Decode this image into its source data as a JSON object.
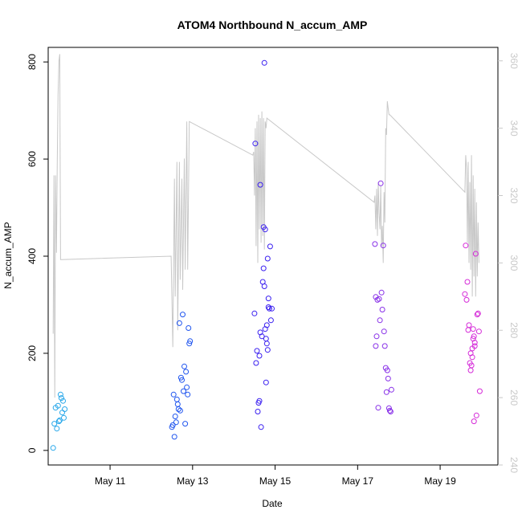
{
  "chart_data": {
    "type": "scatter",
    "title": "ATOM4 Northbound N_accum_AMP",
    "xlabel": "Date",
    "ylabel": "N_accum_AMP",
    "x_ticks": [
      "May 11",
      "May 13",
      "May 15",
      "May 17",
      "May 19"
    ],
    "x_tick_days": [
      11,
      13,
      15,
      17,
      19
    ],
    "xlim": [
      9.5,
      20.4
    ],
    "ylim": [
      -30,
      830
    ],
    "y_ticks": [
      0,
      200,
      400,
      600,
      800
    ],
    "y2lim": [
      240,
      364
    ],
    "y2_ticks": [
      240,
      260,
      280,
      300,
      320,
      340,
      360
    ],
    "grid": false,
    "colors": {
      "line": "#c8c8c8",
      "right_axis": "#c8c8c8",
      "points": [
        "#29a8ea",
        "#2156ef",
        "#3a1ff0",
        "#8830e8",
        "#d52ad8"
      ]
    },
    "series": [
      {
        "values": [
          [
            9.62,
            5
          ],
          [
            9.65,
            55
          ],
          [
            9.68,
            88
          ],
          [
            9.71,
            45
          ],
          [
            9.74,
            92
          ],
          [
            9.76,
            60
          ],
          [
            9.78,
            62
          ],
          [
            9.8,
            115
          ],
          [
            9.82,
            108
          ],
          [
            9.84,
            78
          ],
          [
            9.86,
            102
          ],
          [
            9.88,
            67
          ],
          [
            9.9,
            85
          ],
          [
            12.5,
            48
          ],
          [
            12.52,
            52
          ],
          [
            12.54,
            115
          ],
          [
            12.56,
            28
          ],
          [
            12.58,
            70
          ],
          [
            12.6,
            58
          ],
          [
            12.62,
            105
          ],
          [
            12.64,
            95
          ],
          [
            12.66,
            85
          ],
          [
            12.68,
            262
          ],
          [
            12.7,
            82
          ],
          [
            12.72,
            150
          ],
          [
            12.74,
            145
          ],
          [
            12.76,
            280
          ],
          [
            12.78,
            122
          ],
          [
            12.8,
            173
          ],
          [
            12.82,
            55
          ],
          [
            12.84,
            162
          ],
          [
            12.86,
            130
          ],
          [
            12.88,
            115
          ],
          [
            12.9,
            252
          ],
          [
            12.92,
            220
          ],
          [
            12.94,
            225
          ],
          [
            14.5,
            282
          ],
          [
            14.52,
            632
          ],
          [
            14.54,
            180
          ],
          [
            14.56,
            205
          ],
          [
            14.58,
            80
          ],
          [
            14.6,
            98
          ],
          [
            14.62,
            102
          ],
          [
            14.64,
            547
          ],
          [
            14.66,
            48
          ],
          [
            14.68,
            235
          ],
          [
            14.7,
            347
          ],
          [
            14.72,
            460
          ],
          [
            14.74,
            798
          ],
          [
            14.76,
            455
          ],
          [
            14.78,
            140
          ],
          [
            14.8,
            258
          ],
          [
            14.82,
            395
          ],
          [
            14.84,
            313
          ],
          [
            14.86,
            292
          ],
          [
            14.88,
            420
          ],
          [
            14.9,
            268
          ],
          [
            14.92,
            292
          ],
          [
            14.72,
            375
          ],
          [
            14.74,
            338
          ],
          [
            14.76,
            250
          ],
          [
            14.78,
            230
          ],
          [
            14.8,
            220
          ],
          [
            14.82,
            207
          ],
          [
            14.62,
            195
          ],
          [
            14.64,
            243
          ],
          [
            14.84,
            295
          ],
          [
            17.42,
            425
          ],
          [
            17.44,
            316
          ],
          [
            17.46,
            235
          ],
          [
            17.48,
            310
          ],
          [
            17.5,
            88
          ],
          [
            17.52,
            312
          ],
          [
            17.54,
            268
          ],
          [
            17.56,
            550
          ],
          [
            17.58,
            325
          ],
          [
            17.6,
            290
          ],
          [
            17.62,
            422
          ],
          [
            17.64,
            245
          ],
          [
            17.66,
            215
          ],
          [
            17.68,
            170
          ],
          [
            17.7,
            120
          ],
          [
            17.72,
            165
          ],
          [
            17.74,
            148
          ],
          [
            17.76,
            87
          ],
          [
            17.78,
            82
          ],
          [
            17.8,
            80
          ],
          [
            17.82,
            125
          ],
          [
            17.44,
            215
          ],
          [
            19.6,
            322
          ],
          [
            19.62,
            422
          ],
          [
            19.64,
            310
          ],
          [
            19.66,
            347
          ],
          [
            19.68,
            248
          ],
          [
            19.7,
            258
          ],
          [
            19.72,
            180
          ],
          [
            19.74,
            200
          ],
          [
            19.76,
            175
          ],
          [
            19.78,
            192
          ],
          [
            19.8,
            230
          ],
          [
            19.82,
            60
          ],
          [
            19.84,
            215
          ],
          [
            19.86,
            405
          ],
          [
            19.88,
            72
          ],
          [
            19.9,
            280
          ],
          [
            19.92,
            282
          ],
          [
            19.94,
            245
          ],
          [
            19.96,
            122
          ],
          [
            19.74,
            165
          ],
          [
            19.78,
            210
          ],
          [
            19.8,
            250
          ],
          [
            19.82,
            235
          ],
          [
            19.84,
            222
          ]
        ]
      },
      {
        "axis": "right",
        "values": [
          [
            9.62,
            279
          ],
          [
            9.64,
            326
          ],
          [
            9.66,
            260
          ],
          [
            9.68,
            326
          ],
          [
            9.7,
            303
          ],
          [
            9.72,
            330
          ],
          [
            9.74,
            350
          ],
          [
            9.76,
            360
          ],
          [
            9.78,
            362
          ],
          [
            9.8,
            301
          ],
          [
            9.82,
            301
          ],
          [
            9.84,
            301
          ],
          [
            12.48,
            302
          ],
          [
            12.52,
            275
          ],
          [
            12.56,
            325
          ],
          [
            12.58,
            290
          ],
          [
            12.62,
            330
          ],
          [
            12.64,
            280
          ],
          [
            12.68,
            330
          ],
          [
            12.7,
            295
          ],
          [
            12.74,
            325
          ],
          [
            12.76,
            292
          ],
          [
            12.8,
            331
          ],
          [
            12.82,
            298
          ],
          [
            12.86,
            342
          ],
          [
            12.88,
            298
          ],
          [
            12.92,
            342
          ],
          [
            14.46,
            332
          ],
          [
            14.48,
            333
          ],
          [
            14.5,
            320
          ],
          [
            14.52,
            340
          ],
          [
            14.54,
            305
          ],
          [
            14.56,
            342
          ],
          [
            14.58,
            300
          ],
          [
            14.6,
            344
          ],
          [
            14.62,
            310
          ],
          [
            14.64,
            343
          ],
          [
            14.66,
            306
          ],
          [
            14.68,
            345
          ],
          [
            14.7,
            308
          ],
          [
            14.72,
            343
          ],
          [
            14.74,
            304
          ],
          [
            14.76,
            342
          ],
          [
            14.78,
            340
          ],
          [
            14.8,
            343
          ],
          [
            17.4,
            318
          ],
          [
            17.42,
            320
          ],
          [
            17.44,
            310
          ],
          [
            17.46,
            322
          ],
          [
            17.48,
            308
          ],
          [
            17.5,
            324
          ],
          [
            17.52,
            315
          ],
          [
            17.54,
            310
          ],
          [
            17.56,
            323
          ],
          [
            17.58,
            305
          ],
          [
            17.6,
            311
          ],
          [
            17.62,
            300
          ],
          [
            17.64,
            321
          ],
          [
            17.66,
            312
          ],
          [
            17.68,
            340
          ],
          [
            17.7,
            338
          ],
          [
            17.72,
            348
          ],
          [
            17.74,
            346
          ],
          [
            17.76,
            344
          ],
          [
            17.78,
            344
          ],
          [
            19.6,
            321
          ],
          [
            19.62,
            332
          ],
          [
            19.64,
            328
          ],
          [
            19.66,
            306
          ],
          [
            19.68,
            330
          ],
          [
            19.7,
            300
          ],
          [
            19.72,
            324
          ],
          [
            19.74,
            298
          ],
          [
            19.76,
            332
          ],
          [
            19.78,
            290
          ],
          [
            19.8,
            326
          ],
          [
            19.82,
            296
          ],
          [
            19.84,
            322
          ],
          [
            19.86,
            290
          ],
          [
            19.88,
            318
          ],
          [
            19.9,
            296
          ],
          [
            19.92,
            312
          ],
          [
            19.94,
            300
          ]
        ]
      }
    ]
  }
}
